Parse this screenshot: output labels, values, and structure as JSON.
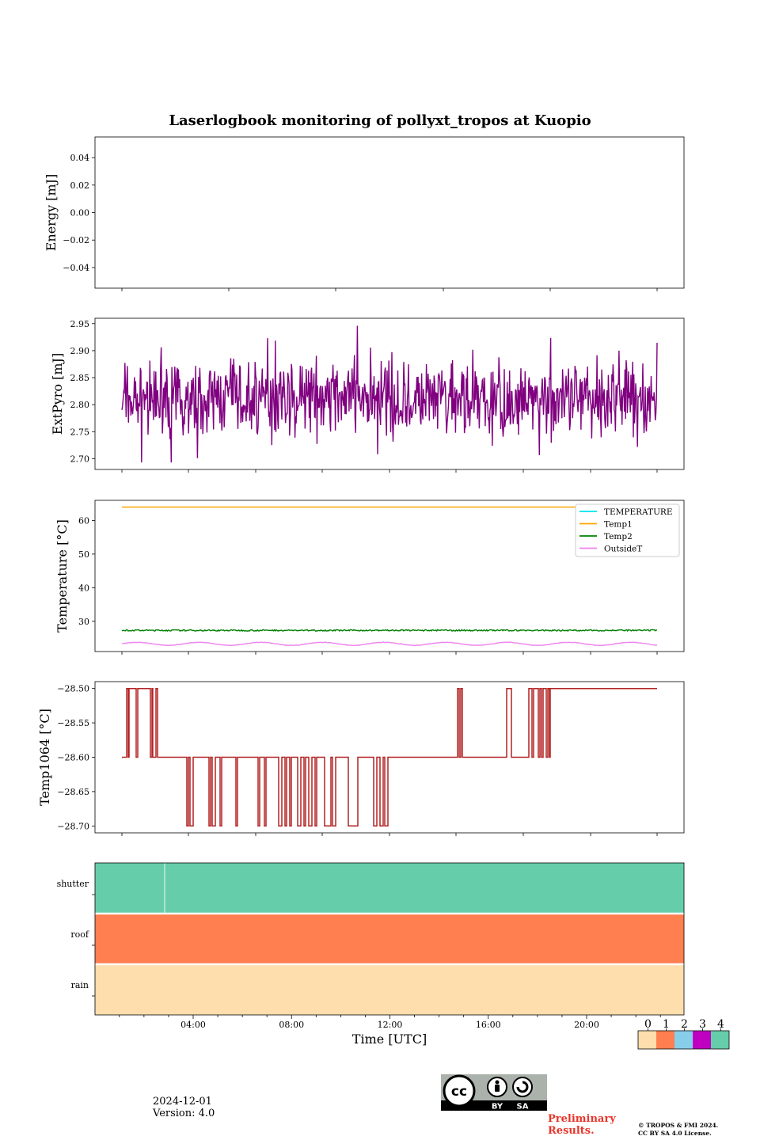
{
  "title": "Laserlogbook monitoring of pollyxt_tropos at Kuopio",
  "date": "2024-12-01",
  "version": "Version: 4.0",
  "license_badge": {
    "by": "BY",
    "sa": "SA",
    "cc": "cc"
  },
  "preliminary": [
    "Preliminary",
    "Results."
  ],
  "copyright": [
    "© TROPOS & FMI 2024.",
    "CC BY SA 4.0 License."
  ],
  "colors": {
    "extpyro": "#800080",
    "temperature": "#00e5ee",
    "temp1": "#ffa500",
    "temp2": "#008000",
    "outsideT": "#ee82ee",
    "temp1064": "#b22222",
    "flag0": "#ffdead",
    "flag1": "#ff7f50",
    "flag2": "#87ceeb",
    "flag3": "#c000c0",
    "flag4": "#66cdaa"
  },
  "chart_data": [
    {
      "type": "line",
      "ylabel": "Energy [mJ]",
      "ylim": [
        -0.055,
        0.055
      ],
      "yticks": [
        "0.04",
        "0.02",
        "0.00",
        "−0.02",
        "−0.04"
      ],
      "ytick_values": [
        0.04,
        0.02,
        0.0,
        -0.02,
        -0.04
      ],
      "series": []
    },
    {
      "type": "line",
      "ylabel": "ExtPyro [mJ]",
      "ylim": [
        2.68,
        2.96
      ],
      "yticks": [
        "2.95",
        "2.90",
        "2.85",
        "2.80",
        "2.75",
        "2.70"
      ],
      "ytick_values": [
        2.95,
        2.9,
        2.85,
        2.8,
        2.75,
        2.7
      ],
      "x_range_hours": [
        1.6,
        23.9
      ],
      "mean": 2.81,
      "min": 2.693,
      "max": 2.946,
      "series": [
        {
          "values_summary": "noisy signal around 2.81 mJ, 2.69–2.95"
        }
      ]
    },
    {
      "type": "line",
      "ylabel": "Temperature [°C]",
      "ylim": [
        21,
        66
      ],
      "yticks": [
        "60",
        "50",
        "40",
        "30"
      ],
      "ytick_values": [
        60,
        50,
        40,
        30
      ],
      "legend_position": "top-right",
      "series": [
        {
          "name": "TEMPERATURE",
          "values": []
        },
        {
          "name": "Temp1",
          "value": 64.0
        },
        {
          "name": "Temp2",
          "value": 27.3
        },
        {
          "name": "OutsideT",
          "value": 23.3
        }
      ]
    },
    {
      "type": "line",
      "ylabel": "Temp1064 [°C]",
      "ylim": [
        -28.71,
        -28.49
      ],
      "yticks": [
        "−28.50",
        "−28.55",
        "−28.60",
        "−28.65",
        "−28.70"
      ],
      "ytick_values": [
        -28.5,
        -28.55,
        -28.6,
        -28.65,
        -28.7
      ],
      "series": [
        {
          "levels": [
            -28.5,
            -28.6,
            -28.7
          ],
          "final_value": -28.5
        }
      ]
    },
    {
      "type": "heatmap",
      "rows": [
        "shutter",
        "roof",
        "rain"
      ],
      "row_values": [
        4,
        1,
        0
      ],
      "xlabel": "Time [UTC]",
      "xticks": [
        "04:00",
        "08:00",
        "12:00",
        "16:00",
        "20:00"
      ],
      "xtick_hours": [
        4,
        8,
        12,
        16,
        20
      ],
      "xlim_hours": [
        0,
        24
      ],
      "colorbar_ticks": [
        "0",
        "1",
        "2",
        "3",
        "4"
      ]
    }
  ]
}
